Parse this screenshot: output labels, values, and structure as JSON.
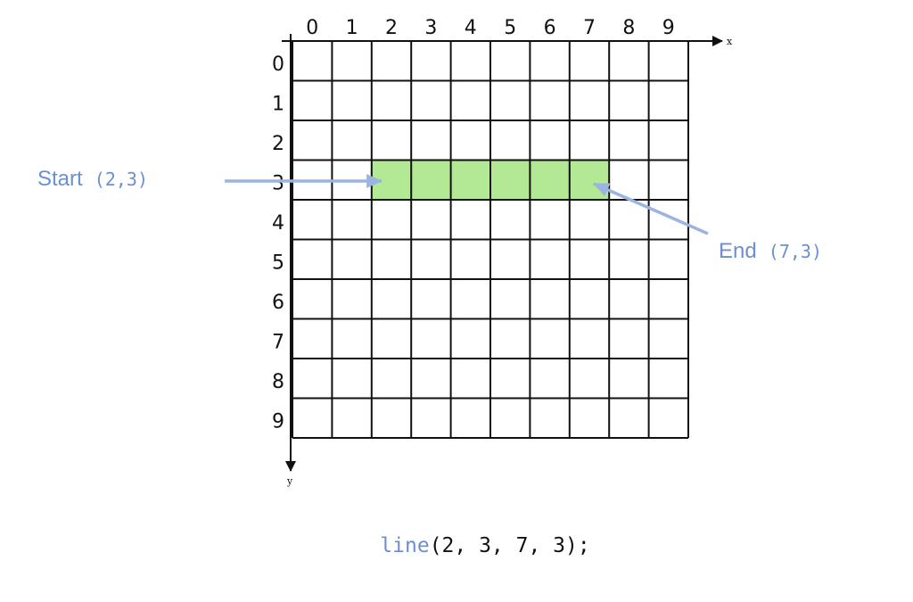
{
  "grid": {
    "columns": 10,
    "rows": 10,
    "x_labels": [
      "0",
      "1",
      "2",
      "3",
      "4",
      "5",
      "6",
      "7",
      "8",
      "9"
    ],
    "y_labels": [
      "0",
      "1",
      "2",
      "3",
      "4",
      "5",
      "6",
      "7",
      "8",
      "9"
    ],
    "x_axis_label": "x",
    "y_axis_label": "y",
    "line_color": "#111111",
    "highlight_color": "#b3e894"
  },
  "line": {
    "start": {
      "x": 2,
      "y": 3
    },
    "end": {
      "x": 7,
      "y": 3
    }
  },
  "callouts": {
    "color": "#6d8fcd",
    "arrow_color": "#9db3e1",
    "start_word": "Start",
    "start_coord": "(2,3)",
    "end_word": "End",
    "end_coord": "(7,3)"
  },
  "code": {
    "function_name": "line",
    "args": "(2, 3, 7, 3);",
    "function_color": "#6d8fcd",
    "text_color": "#111111"
  }
}
